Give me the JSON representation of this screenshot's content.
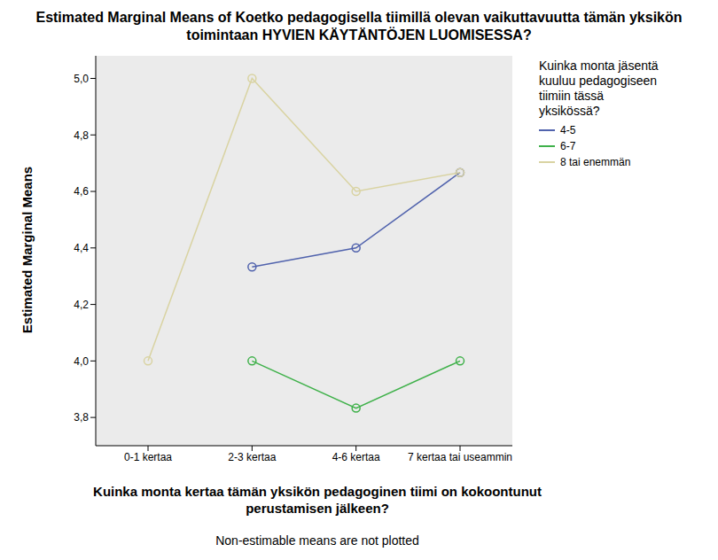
{
  "chart_data": {
    "type": "line",
    "title": "Estimated Marginal Means of Koetko pedagogisella tiimillä olevan vaikuttavuutta tämän yksikön toimintaan HYVIEN KÄYTÄNTÖJEN LUOMISESSA?",
    "x_label": "Kuinka monta kertaa tämän yksikön pedagoginen tiimi on kokoontunut perustamisen jälkeen?",
    "y_label": "Estimated Marginal Means",
    "legend_title": "Kuinka monta jäsentä kuuluu pedagogiseen tiimiin tässä yksikössä?",
    "annotation": "Non-estimable means are not plotted",
    "categories": [
      "0-1 kertaa",
      "2-3 kertaa",
      "4-6 kertaa",
      "7 kertaa tai useammin"
    ],
    "series": [
      {
        "name": "4-5",
        "color": "#5163ad",
        "values": [
          null,
          4.333,
          4.4,
          4.667
        ]
      },
      {
        "name": "6-7",
        "color": "#3fb14a",
        "values": [
          null,
          4.0,
          3.833,
          4.0
        ]
      },
      {
        "name": "8 tai enemmän",
        "color": "#d9d3a2",
        "values": [
          4.0,
          5.0,
          4.6,
          4.667
        ]
      }
    ],
    "ylim": [
      3.7,
      5.08
    ],
    "yticks": [
      {
        "value": 3.8,
        "label": "3,8"
      },
      {
        "value": 4.0,
        "label": "4,0"
      },
      {
        "value": 4.2,
        "label": "4,2"
      },
      {
        "value": 4.4,
        "label": "4,4"
      },
      {
        "value": 4.6,
        "label": "4,6"
      },
      {
        "value": 4.8,
        "label": "4,8"
      },
      {
        "value": 5.0,
        "label": "5,0"
      }
    ],
    "marker": "circle",
    "legend": "right"
  }
}
